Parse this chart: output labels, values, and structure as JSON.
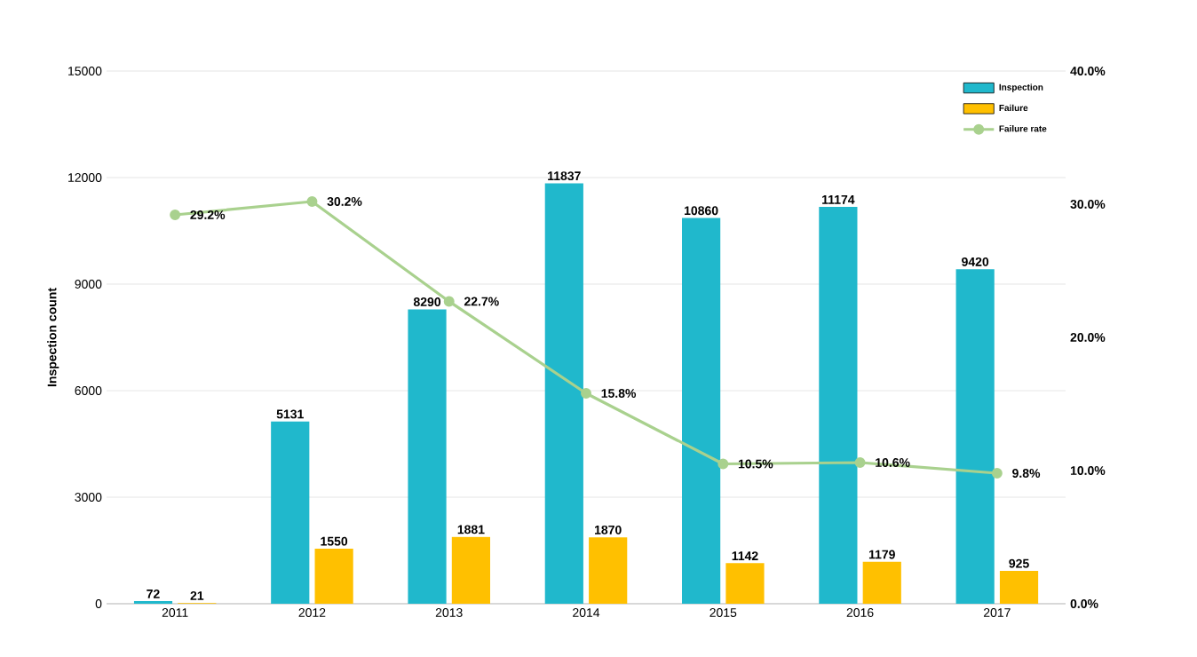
{
  "chart_data": {
    "type": "bar",
    "ylabel": "Inspection count",
    "categories": [
      "2011",
      "2012",
      "2013",
      "2014",
      "2015",
      "2016",
      "2017"
    ],
    "series": [
      {
        "name": "Inspection",
        "color": "#20b8cc",
        "values": [
          72,
          5131,
          8290,
          11837,
          10860,
          11174,
          9420
        ],
        "value_labels": [
          "72",
          "5131",
          "8290",
          "11837",
          "10860",
          "11174",
          "9420"
        ]
      },
      {
        "name": "Failure",
        "color": "#ffc000",
        "values": [
          21,
          1550,
          1881,
          1870,
          1142,
          1179,
          925
        ],
        "value_labels": [
          "21",
          "1550",
          "1881",
          "1870",
          "1142",
          "1179",
          "925"
        ]
      },
      {
        "name": "Failure rate",
        "type": "line",
        "axis": "y2",
        "color": "#a9d18e",
        "marker": "circle",
        "values": [
          29.2,
          30.2,
          22.7,
          15.8,
          10.5,
          10.6,
          9.8
        ],
        "value_labels": [
          "29.2%",
          "30.2%",
          "22.7%",
          "15.8%",
          "10.5%",
          "10.6%",
          "9.8%"
        ]
      }
    ],
    "ylim": [
      0,
      15000
    ],
    "yticks": [
      0,
      3000,
      6000,
      9000,
      12000,
      15000
    ],
    "y2lim": [
      0,
      40
    ],
    "y2ticks": [
      {
        "value": 0,
        "label": "0.0%"
      },
      {
        "value": 10,
        "label": "10.0%"
      },
      {
        "value": 20,
        "label": "20.0%"
      },
      {
        "value": 30,
        "label": "30.0%"
      },
      {
        "value": 40,
        "label": "40.0%"
      }
    ],
    "grid": "y",
    "legend": "top right"
  }
}
